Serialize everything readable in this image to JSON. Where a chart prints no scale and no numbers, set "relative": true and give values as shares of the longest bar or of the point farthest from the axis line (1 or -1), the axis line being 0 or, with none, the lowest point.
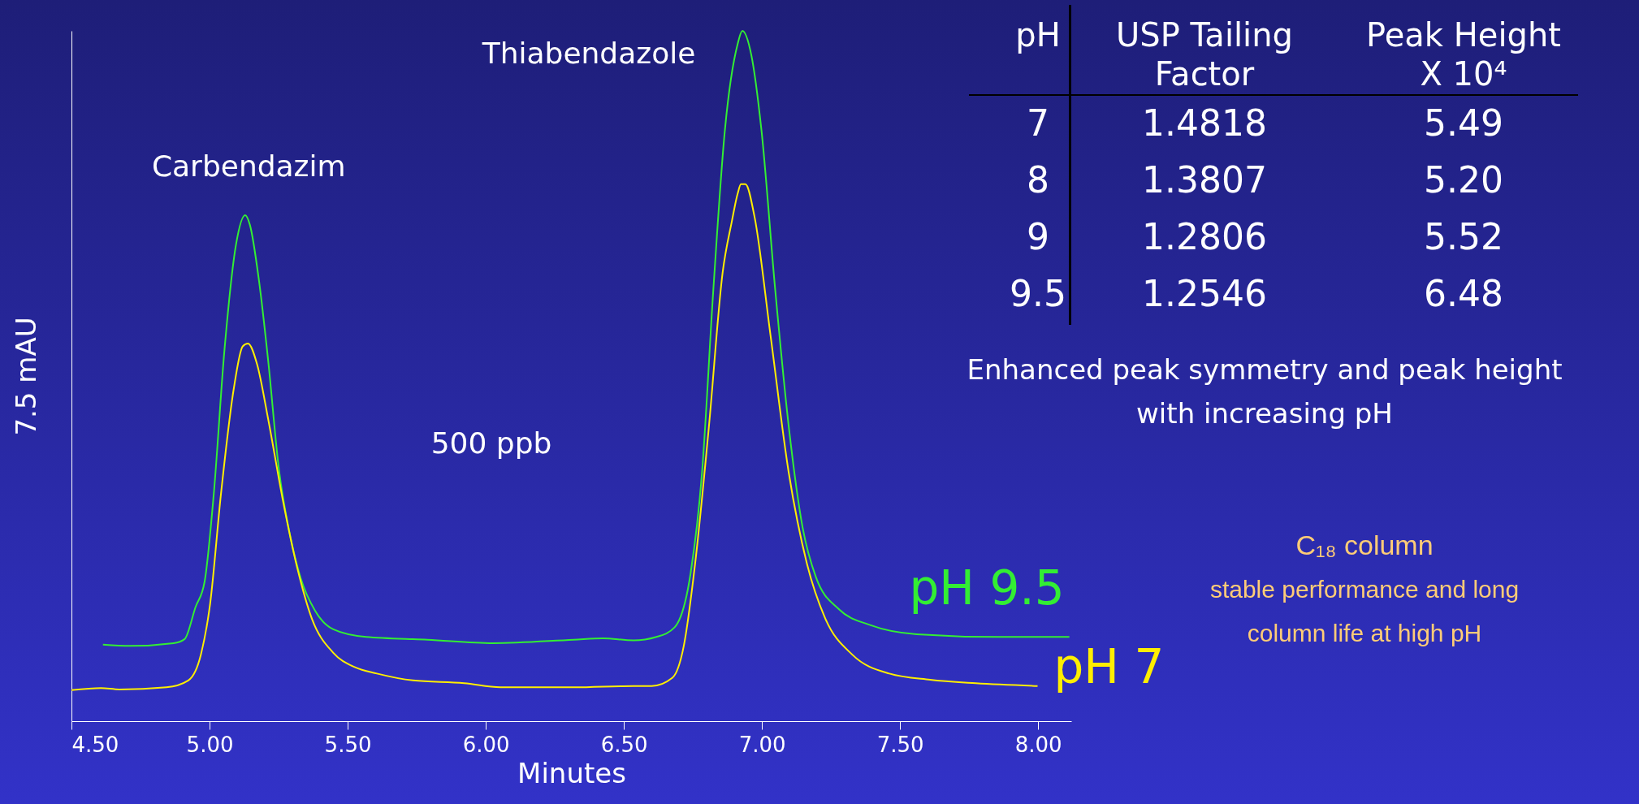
{
  "chart_data": [
    {
      "type": "line",
      "relative": true,
      "xlabel": "Minutes",
      "ylabel": "7.5 mAU",
      "legend": false,
      "xlim": [
        4.5,
        8.12
      ],
      "xticks": [
        {
          "value": 4.5,
          "label": "4.50"
        },
        {
          "value": 5,
          "label": "5.00"
        },
        {
          "value": 5.5,
          "label": "5.50"
        },
        {
          "value": 6,
          "label": "6.00"
        },
        {
          "value": 6.5,
          "label": "6.50"
        },
        {
          "value": 7,
          "label": "7.00"
        },
        {
          "value": 7.5,
          "label": "7.50"
        },
        {
          "value": 8,
          "label": "8.00"
        }
      ],
      "series": [
        {
          "name": "pH 9.5",
          "color": "#33ee33",
          "x": [
            4.614,
            4.713,
            4.87,
            4.91,
            4.949,
            4.982,
            5.015,
            5.054,
            5.096,
            5.129,
            5.146,
            5.179,
            5.212,
            5.251,
            5.291,
            5.33,
            5.382,
            5.448,
            5.566,
            5.789,
            6.026,
            6.318,
            6.424,
            6.535,
            6.618,
            6.684,
            6.742,
            6.783,
            6.824,
            6.866,
            6.912,
            6.929,
            6.961,
            6.998,
            7.048,
            7.097,
            7.147,
            7.196,
            7.279,
            7.394,
            7.56,
            7.857,
            8.113
          ],
          "values": [
            0.111,
            0.109,
            0.113,
            0.119,
            0.165,
            0.202,
            0.328,
            0.538,
            0.691,
            0.733,
            0.719,
            0.638,
            0.523,
            0.365,
            0.27,
            0.207,
            0.16,
            0.133,
            0.122,
            0.118,
            0.113,
            0.118,
            0.12,
            0.117,
            0.122,
            0.136,
            0.215,
            0.36,
            0.625,
            0.857,
            0.981,
            1.0,
            0.966,
            0.857,
            0.625,
            0.427,
            0.281,
            0.208,
            0.162,
            0.139,
            0.126,
            0.122,
            0.122
          ]
        },
        {
          "name": "pH 7",
          "color": "#ffee00",
          "x": [
            4.5,
            4.607,
            4.673,
            4.844,
            4.923,
            4.969,
            5.002,
            5.041,
            5.087,
            5.12,
            5.139,
            5.172,
            5.212,
            5.264,
            5.317,
            5.37,
            5.448,
            5.527,
            5.606,
            5.737,
            5.922,
            6.053,
            6.318,
            6.535,
            6.601,
            6.676,
            6.717,
            6.758,
            6.808,
            6.858,
            6.891,
            6.912,
            6.924,
            6.94,
            6.973,
            7.031,
            7.097,
            7.163,
            7.229,
            7.328,
            7.461,
            7.609,
            7.774,
            7.998
          ],
          "values": [
            0.045,
            0.048,
            0.046,
            0.049,
            0.059,
            0.097,
            0.17,
            0.328,
            0.48,
            0.543,
            0.547,
            0.517,
            0.438,
            0.323,
            0.223,
            0.149,
            0.099,
            0.078,
            0.069,
            0.059,
            0.055,
            0.049,
            0.049,
            0.051,
            0.051,
            0.063,
            0.109,
            0.228,
            0.427,
            0.651,
            0.724,
            0.764,
            0.778,
            0.778,
            0.731,
            0.559,
            0.36,
            0.228,
            0.149,
            0.096,
            0.069,
            0.06,
            0.055,
            0.051
          ]
        }
      ],
      "annotations": [
        {
          "text": "Carbendazim",
          "x": 5.13,
          "y": 0.733
        },
        {
          "text": "Thiabendazole",
          "x": 6.93,
          "y": 1.0
        },
        "500 ppb",
        "Enhanced peak symmetry and peak height with increasing pH",
        "C₁₈ column",
        "stable performance and long column life at high pH"
      ]
    },
    {
      "type": "other",
      "categories": [
        "pH",
        "USP Tailing Factor",
        "Peak Height X 10⁴"
      ],
      "annotations": [
        "7",
        "1.4818",
        "5.49",
        "8",
        "1.3807",
        "5.20",
        "9",
        "1.2806",
        "5.52",
        "9.5",
        "1.2546",
        "6.48"
      ]
    }
  ]
}
